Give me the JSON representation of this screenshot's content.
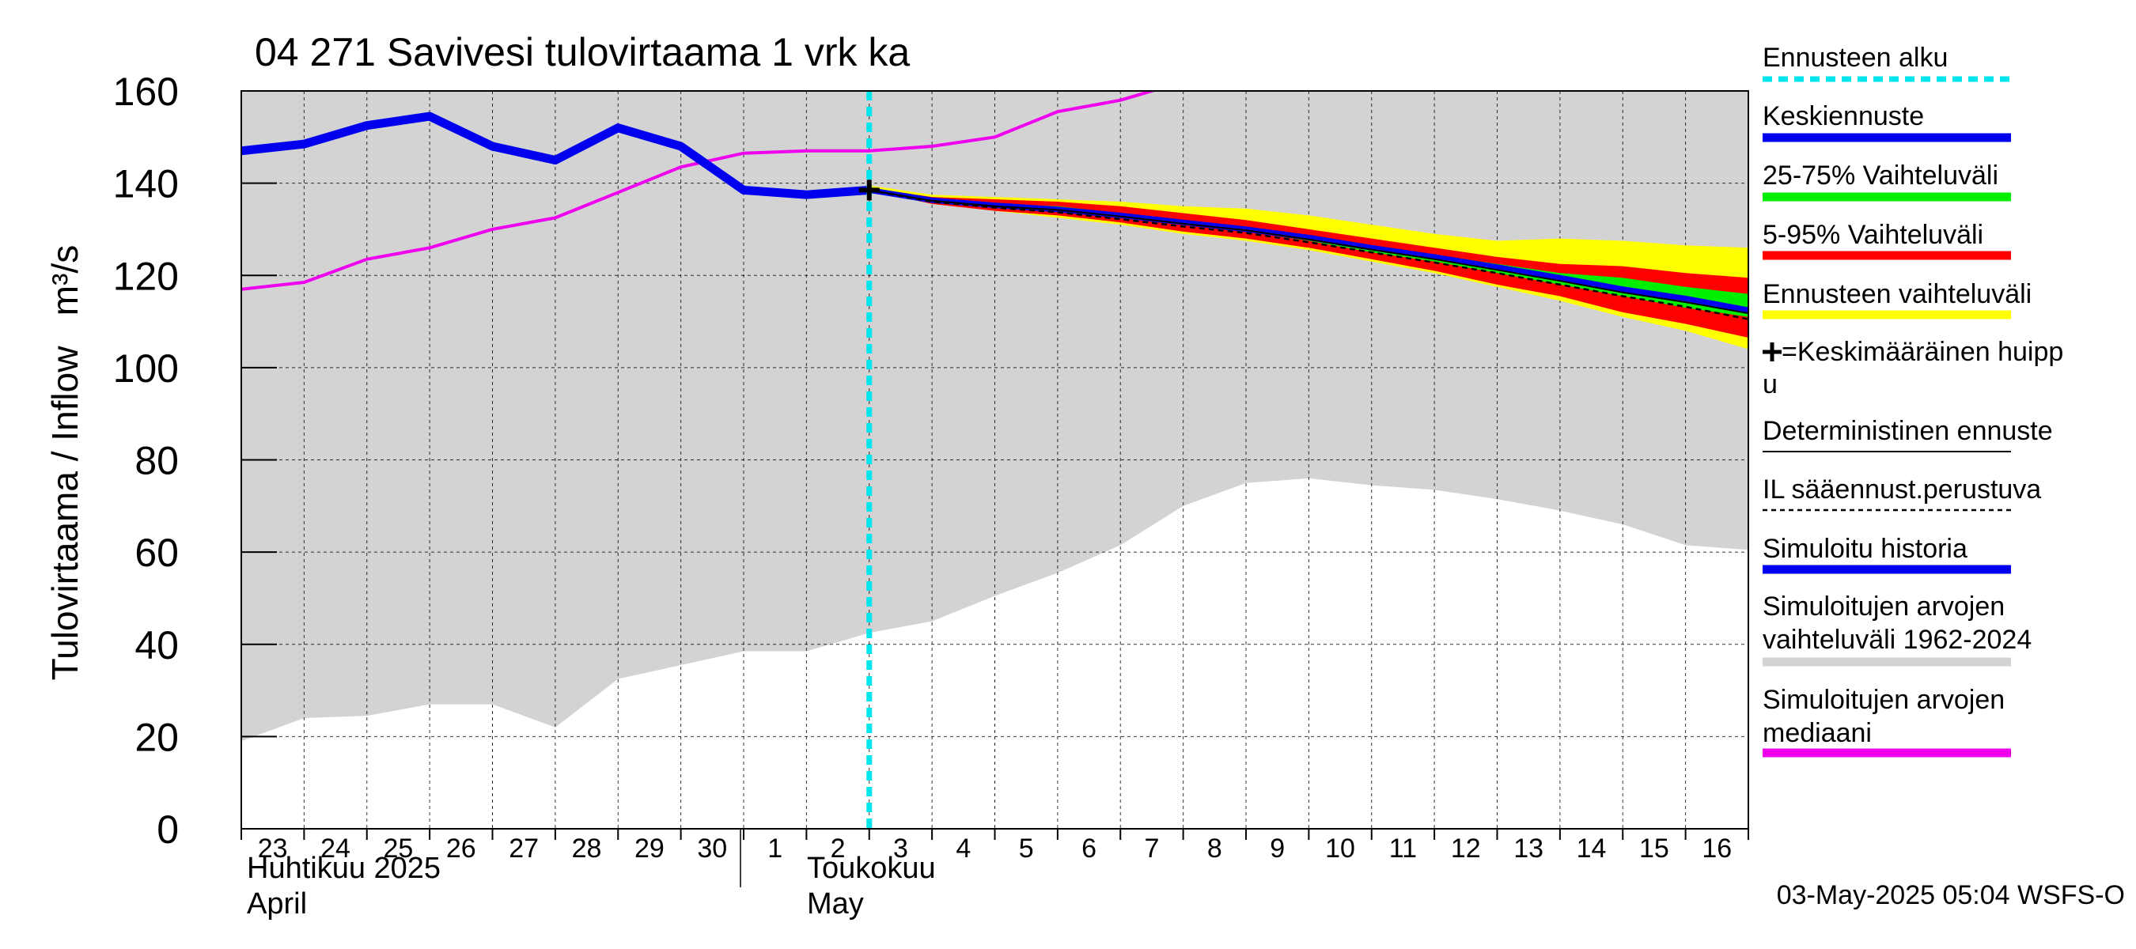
{
  "chart_data": {
    "type": "line",
    "title": "04 271 Savivesi tulovirtaama 1 vrk ka",
    "ylabel": "Tulovirtaama / Inflow   m³/s",
    "ylim": [
      0,
      160
    ],
    "yticks": [
      0,
      20,
      40,
      60,
      80,
      100,
      120,
      140,
      160
    ],
    "xlim": [
      "2025-04-23",
      "2025-05-17"
    ],
    "x_tick_labels": [
      "23",
      "24",
      "25",
      "26",
      "27",
      "28",
      "29",
      "30",
      "1",
      "2",
      "3",
      "4",
      "5",
      "6",
      "7",
      "8",
      "9",
      "10",
      "11",
      "12",
      "13",
      "14",
      "15",
      "16"
    ],
    "x_tick_dates": [
      "2025-04-23",
      "2025-04-24",
      "2025-04-25",
      "2025-04-26",
      "2025-04-27",
      "2025-04-28",
      "2025-04-29",
      "2025-04-30",
      "2025-05-01",
      "2025-05-02",
      "2025-05-03",
      "2025-05-04",
      "2025-05-05",
      "2025-05-06",
      "2025-05-07",
      "2025-05-08",
      "2025-05-09",
      "2025-05-10",
      "2025-05-11",
      "2025-05-12",
      "2025-05-13",
      "2025-05-14",
      "2025-05-15",
      "2025-05-16"
    ],
    "month_labels": [
      {
        "date": "2025-04-23",
        "fi": "Huhtikuu  2025",
        "en": "April"
      },
      {
        "date": "2025-05-01",
        "fi": "Toukokuu",
        "en": "May"
      }
    ],
    "forecast_start": "2025-05-03",
    "legend": {
      "placement": "right",
      "items": [
        {
          "label": "Ennusteen alku",
          "color": "#00e5ee",
          "style": "dashed"
        },
        {
          "label": "Keskiennuste",
          "color": "#0000ee",
          "style": "solid"
        },
        {
          "label": "25-75% Vaihteluväli",
          "color": "#00ee00",
          "style": "solid"
        },
        {
          "label": "5-95% Vaihteluväli",
          "color": "#ff0000",
          "style": "solid"
        },
        {
          "label": "Ennusteen vaihteluväli",
          "color": "#ffff00",
          "style": "solid"
        },
        {
          "label": "✚=Keskimääräinen huipp u",
          "color": "#000000",
          "style": "marker"
        },
        {
          "label": "Deterministinen ennuste",
          "color": "#000000",
          "style": "thin"
        },
        {
          "label": "IL sääennust.perustuva",
          "color": "#000000",
          "style": "dotted"
        },
        {
          "label": "Simuloitu historia",
          "color": "#0000ee",
          "style": "solid"
        },
        {
          "label": "Simuloitujen arvojen vaihteluväli 1962-2024",
          "color": "#d3d3d3",
          "style": "solid"
        },
        {
          "label": "Simuloitujen arvojen mediaani",
          "color": "#ee00ee",
          "style": "solid"
        }
      ]
    },
    "hist_range": {
      "x": [
        "2025-04-23",
        "2025-04-24",
        "2025-04-25",
        "2025-04-26",
        "2025-04-27",
        "2025-04-28",
        "2025-04-29",
        "2025-04-30",
        "2025-05-01",
        "2025-05-02",
        "2025-05-03",
        "2025-05-04",
        "2025-05-05",
        "2025-05-06",
        "2025-05-07",
        "2025-05-08",
        "2025-05-09",
        "2025-05-10",
        "2025-05-11",
        "2025-05-12",
        "2025-05-13",
        "2025-05-14",
        "2025-05-15",
        "2025-05-16",
        "2025-05-17"
      ],
      "low": [
        19,
        24,
        24.5,
        27,
        27,
        22,
        32.5,
        35.5,
        38.5,
        38.5,
        42.5,
        45,
        50.5,
        55.5,
        61.5,
        70,
        75,
        76,
        74.5,
        73.5,
        71.5,
        69,
        66,
        61.5,
        60.5
      ],
      "high": [
        160,
        160,
        160,
        160,
        160,
        160,
        160,
        160,
        160,
        160,
        160,
        160,
        160,
        160,
        160,
        160,
        160,
        160,
        160,
        160,
        160,
        160,
        160,
        160,
        160
      ]
    },
    "median": {
      "x": [
        "2025-04-23",
        "2025-04-24",
        "2025-04-25",
        "2025-04-26",
        "2025-04-27",
        "2025-04-28",
        "2025-04-29",
        "2025-04-30",
        "2025-05-01",
        "2025-05-02",
        "2025-05-03",
        "2025-05-04",
        "2025-05-05",
        "2025-05-06",
        "2025-05-07",
        "2025-05-08"
      ],
      "y": [
        117,
        118.5,
        123.5,
        126,
        130,
        132.5,
        138,
        143.5,
        146.5,
        147,
        147,
        148,
        150,
        155.5,
        158,
        162
      ]
    },
    "simulated_history": {
      "x": [
        "2025-04-23",
        "2025-04-24",
        "2025-04-25",
        "2025-04-26",
        "2025-04-27",
        "2025-04-28",
        "2025-04-29",
        "2025-04-30",
        "2025-05-01",
        "2025-05-02",
        "2025-05-03"
      ],
      "y": [
        147,
        148.5,
        152.5,
        154.5,
        148,
        145,
        152,
        148,
        138.5,
        137.5,
        138.5
      ]
    },
    "forecast": {
      "x": [
        "2025-05-03",
        "2025-05-04",
        "2025-05-05",
        "2025-05-06",
        "2025-05-07",
        "2025-05-08",
        "2025-05-09",
        "2025-05-10",
        "2025-05-11",
        "2025-05-12",
        "2025-05-13",
        "2025-05-14",
        "2025-05-15",
        "2025-05-16",
        "2025-05-17"
      ],
      "range_low": [
        138.5,
        135.5,
        134,
        132.5,
        131,
        129,
        127.5,
        125.5,
        123,
        120.5,
        117.5,
        114.5,
        111,
        108,
        104
      ],
      "range_high": [
        139.5,
        137.5,
        137,
        136.5,
        136,
        135,
        134.5,
        133,
        131,
        129,
        127.5,
        128,
        127.5,
        126.5,
        126
      ],
      "p5": [
        138.5,
        135.5,
        134,
        133,
        131.5,
        129.5,
        128,
        126,
        123.5,
        121,
        118,
        115.5,
        112,
        109.5,
        106.5
      ],
      "p95": [
        139,
        137,
        136.5,
        136,
        135,
        133.5,
        132,
        130,
        128,
        126,
        124,
        122.5,
        122,
        120.5,
        119.5
      ],
      "p25": [
        138.5,
        136,
        135,
        134,
        132.5,
        131,
        129.5,
        127.5,
        125,
        123,
        120.5,
        118,
        115.5,
        113,
        111
      ],
      "p75": [
        139,
        136.5,
        135.5,
        135,
        133.5,
        132,
        130.5,
        128.5,
        126.5,
        124.5,
        122.5,
        120.5,
        119.5,
        117.5,
        116
      ],
      "mean": [
        138.5,
        136.3,
        135.2,
        134.3,
        133,
        131.5,
        130,
        128.2,
        126,
        124,
        121.8,
        119.5,
        117,
        115,
        112.5
      ],
      "deterministic": [
        138.5,
        136.2,
        135,
        134.2,
        132.8,
        131.2,
        129.8,
        127.8,
        125.6,
        123.5,
        121.2,
        118.8,
        116.3,
        114.2,
        111.8
      ],
      "il_weather": [
        138.5,
        136,
        134.7,
        133.7,
        132.2,
        130.6,
        129.2,
        127.2,
        125,
        122.8,
        120.5,
        118,
        115.5,
        113.2,
        110.5
      ]
    },
    "mean_peak": {
      "x": "2025-05-03",
      "y": 138.5
    }
  },
  "footer": {
    "timestamp": "03-May-2025 05:04 WSFS-O"
  }
}
